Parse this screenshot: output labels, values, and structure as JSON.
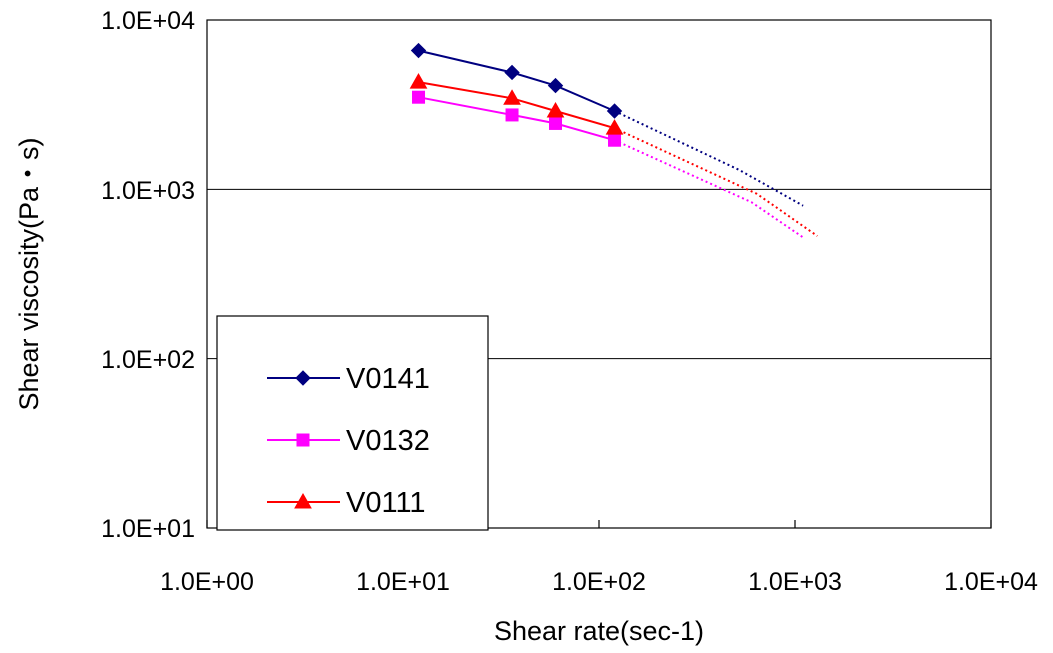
{
  "chart_data": {
    "type": "line",
    "title": "",
    "xlabel": "Shear rate(sec-1)",
    "ylabel": "Shear viscosity(Pa・s)",
    "xscale": "log",
    "yscale": "log",
    "xlim": [
      1,
      10000
    ],
    "ylim": [
      10,
      10000
    ],
    "x_tick_labels": [
      "1.0E+00",
      "1.0E+01",
      "1.0E+02",
      "1.0E+03",
      "1.0E+04"
    ],
    "y_tick_labels": [
      "1.0E+01",
      "1.0E+02",
      "1.0E+03",
      "1.0E+04"
    ],
    "grid": "horizontal major",
    "legend_position": "bottom-left",
    "series": [
      {
        "name": "V0141",
        "color": "#000080",
        "marker": "diamond",
        "x": [
          12,
          36,
          60,
          120
        ],
        "values": [
          6600,
          4900,
          4100,
          2900
        ],
        "extrapolation": {
          "style": "dotted",
          "x": [
            120,
            520,
            1100
          ],
          "values": [
            2900,
            1300,
            800
          ]
        }
      },
      {
        "name": "V0132",
        "color": "#FF00FF",
        "marker": "square",
        "x": [
          12,
          36,
          60,
          120
        ],
        "values": [
          3500,
          2750,
          2450,
          1950
        ],
        "extrapolation": {
          "style": "dotted",
          "x": [
            120,
            600,
            1100
          ],
          "values": [
            1950,
            840,
            520
          ]
        }
      },
      {
        "name": "V0111",
        "color": "#FF0000",
        "marker": "triangle",
        "x": [
          12,
          36,
          60,
          120
        ],
        "values": [
          4300,
          3450,
          2900,
          2300
        ],
        "extrapolation": {
          "style": "dotted",
          "x": [
            120,
            640,
            1300
          ],
          "values": [
            2300,
            940,
            530
          ]
        }
      }
    ]
  }
}
